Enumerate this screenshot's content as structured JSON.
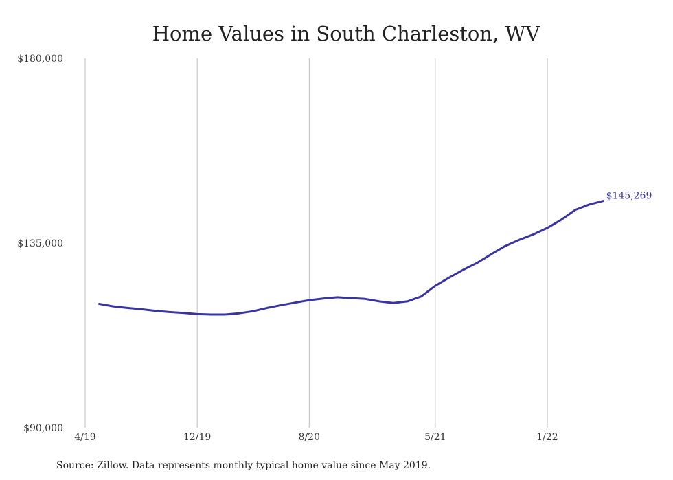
{
  "chart_data": {
    "type": "line",
    "title": "Home Values in South Charleston, WV",
    "xlabel": "",
    "ylabel": "",
    "ylim": [
      90000,
      180000
    ],
    "y_ticks": [
      "$180,000",
      "$135,000",
      "$90,000"
    ],
    "y_tick_values": [
      180000,
      135000,
      90000
    ],
    "x_ticks": [
      "4/19",
      "12/19",
      "8/20",
      "5/21",
      "1/22"
    ],
    "x_tick_dates": [
      "2019-04",
      "2019-12",
      "2020-08",
      "2021-05",
      "2022-01"
    ],
    "grid": "vertical",
    "legend": "none",
    "end_label": "$145,269",
    "line_color": "#3a34a0",
    "series": [
      {
        "x": [
          "2019-05",
          "2019-06",
          "2019-07",
          "2019-08",
          "2019-09",
          "2019-10",
          "2019-11",
          "2019-12",
          "2020-01",
          "2020-02",
          "2020-03",
          "2020-04",
          "2020-05",
          "2020-06",
          "2020-07",
          "2020-08",
          "2020-09",
          "2020-10",
          "2020-11",
          "2020-12",
          "2021-01",
          "2021-02",
          "2021-03",
          "2021-04",
          "2021-05",
          "2021-06",
          "2021-07",
          "2021-08",
          "2021-09",
          "2021-10",
          "2021-11",
          "2021-12",
          "2022-01",
          "2022-02",
          "2022-03",
          "2022-04",
          "2022-05"
        ],
        "values": [
          120200,
          119600,
          119200,
          118900,
          118500,
          118200,
          118000,
          117700,
          117600,
          117600,
          117900,
          118400,
          119200,
          119900,
          120500,
          121100,
          121500,
          121800,
          121600,
          121400,
          120800,
          120400,
          120800,
          122000,
          124600,
          126600,
          128500,
          130200,
          132300,
          134300,
          135800,
          137100,
          138700,
          140700,
          143100,
          144400,
          145269
        ]
      }
    ]
  },
  "source_note": "Source: Zillow. Data represents monthly typical home value since May 2019."
}
